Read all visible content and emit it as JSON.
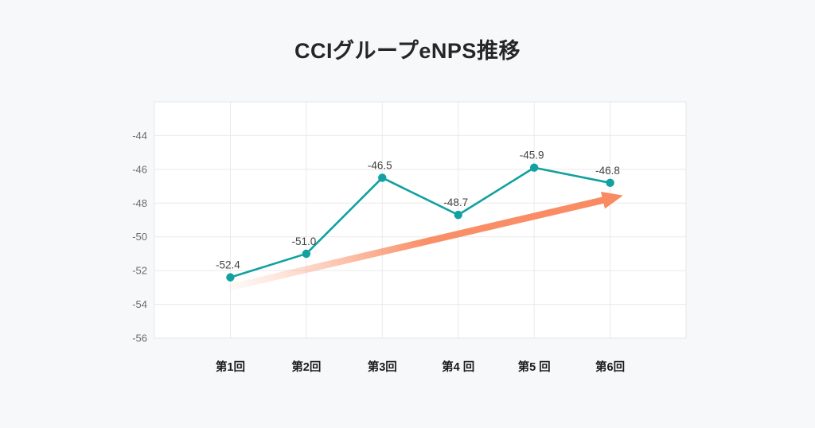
{
  "page": {
    "background_color": "#f7f8fa"
  },
  "chart_data": {
    "type": "line",
    "title": "CCIグループeNPS推移",
    "categories": [
      "第1回",
      "第2回",
      "第3回",
      "第4 回",
      "第5 回",
      "第6回"
    ],
    "series": [
      {
        "name": "eNPS",
        "values": [
          -52.4,
          -51.0,
          -46.5,
          -48.7,
          -45.9,
          -46.8
        ]
      }
    ],
    "data_labels": [
      "-52.4",
      "-51.0",
      "-46.5",
      "-48.7",
      "-45.9",
      "-46.8"
    ],
    "xlabel": "",
    "ylabel": "",
    "ylim": [
      -56,
      -42
    ],
    "yticks": [
      -44,
      -46,
      -48,
      -50,
      -52,
      -54,
      -56
    ],
    "grid": true,
    "legend": false,
    "trend_arrow": {
      "from": [
        0.985,
        -53.0
      ],
      "to": [
        6.17,
        -47.55
      ]
    },
    "colors": {
      "line": "#12a0a0",
      "marker": "#12a0a0",
      "arrow": "#f98a61",
      "grid": "#e9e9e9",
      "plot_border": "#e5e7ea",
      "plot_bg": "#ffffff",
      "tick_text": "#6b6b6b",
      "label_text": "#424242",
      "category_text": "#1a1a1a",
      "title_text": "#262626"
    }
  }
}
